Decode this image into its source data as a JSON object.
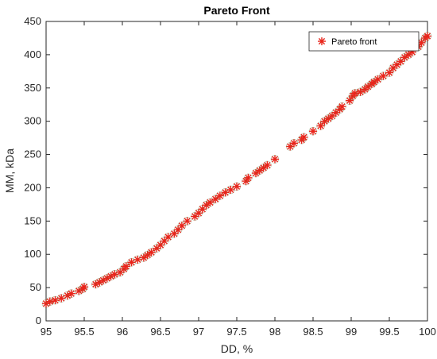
{
  "chart_data": {
    "type": "scatter",
    "title": "Pareto Front",
    "xlabel": "DD, %",
    "ylabel": "MM, kDa",
    "xlim": [
      95,
      100
    ],
    "ylim": [
      0,
      450
    ],
    "xticks": [
      "95",
      "95.5",
      "96",
      "96.5",
      "97",
      "97.5",
      "98",
      "98.5",
      "99",
      "99.5",
      "100"
    ],
    "yticks": [
      "0",
      "50",
      "100",
      "150",
      "200",
      "250",
      "300",
      "350",
      "400",
      "450"
    ],
    "grid": false,
    "legend_position": "top-right",
    "series": [
      {
        "name": "Pareto front",
        "marker": "asterisk",
        "color": "#e8251b",
        "edge_color": "#4d7a3a",
        "points": [
          [
            95.0,
            26
          ],
          [
            95.05,
            29
          ],
          [
            95.12,
            31
          ],
          [
            95.2,
            34
          ],
          [
            95.28,
            38
          ],
          [
            95.33,
            41
          ],
          [
            95.43,
            45
          ],
          [
            95.48,
            48
          ],
          [
            95.5,
            51
          ],
          [
            95.65,
            55
          ],
          [
            95.7,
            58
          ],
          [
            95.75,
            61
          ],
          [
            95.8,
            64
          ],
          [
            95.85,
            67
          ],
          [
            95.9,
            70
          ],
          [
            95.97,
            73
          ],
          [
            96.02,
            78
          ],
          [
            96.05,
            82
          ],
          [
            96.12,
            88
          ],
          [
            96.2,
            92
          ],
          [
            96.28,
            95
          ],
          [
            96.33,
            99
          ],
          [
            96.38,
            103
          ],
          [
            96.45,
            109
          ],
          [
            96.5,
            114
          ],
          [
            96.55,
            120
          ],
          [
            96.6,
            126
          ],
          [
            96.68,
            131
          ],
          [
            96.73,
            137
          ],
          [
            96.78,
            143
          ],
          [
            96.85,
            150
          ],
          [
            96.95,
            157
          ],
          [
            97.0,
            162
          ],
          [
            97.05,
            168
          ],
          [
            97.1,
            174
          ],
          [
            97.15,
            178
          ],
          [
            97.22,
            183
          ],
          [
            97.28,
            188
          ],
          [
            97.35,
            193
          ],
          [
            97.42,
            197
          ],
          [
            97.5,
            202
          ],
          [
            97.62,
            210
          ],
          [
            97.65,
            215
          ],
          [
            97.75,
            222
          ],
          [
            97.8,
            226
          ],
          [
            97.85,
            230
          ],
          [
            97.9,
            234
          ],
          [
            98.0,
            243
          ],
          [
            98.2,
            262
          ],
          [
            98.25,
            267
          ],
          [
            98.35,
            272
          ],
          [
            98.38,
            276
          ],
          [
            98.5,
            285
          ],
          [
            98.6,
            293
          ],
          [
            98.65,
            300
          ],
          [
            98.7,
            304
          ],
          [
            98.75,
            308
          ],
          [
            98.8,
            313
          ],
          [
            98.85,
            318
          ],
          [
            98.88,
            322
          ],
          [
            98.98,
            331
          ],
          [
            99.02,
            338
          ],
          [
            99.05,
            342
          ],
          [
            99.12,
            344
          ],
          [
            99.18,
            348
          ],
          [
            99.22,
            352
          ],
          [
            99.27,
            356
          ],
          [
            99.3,
            359
          ],
          [
            99.35,
            363
          ],
          [
            99.42,
            368
          ],
          [
            99.5,
            373
          ],
          [
            99.55,
            380
          ],
          [
            99.6,
            385
          ],
          [
            99.65,
            390
          ],
          [
            99.7,
            396
          ],
          [
            99.75,
            400
          ],
          [
            99.8,
            404
          ],
          [
            99.88,
            412
          ],
          [
            99.92,
            418
          ],
          [
            99.97,
            425
          ],
          [
            100.0,
            428
          ]
        ]
      }
    ]
  }
}
